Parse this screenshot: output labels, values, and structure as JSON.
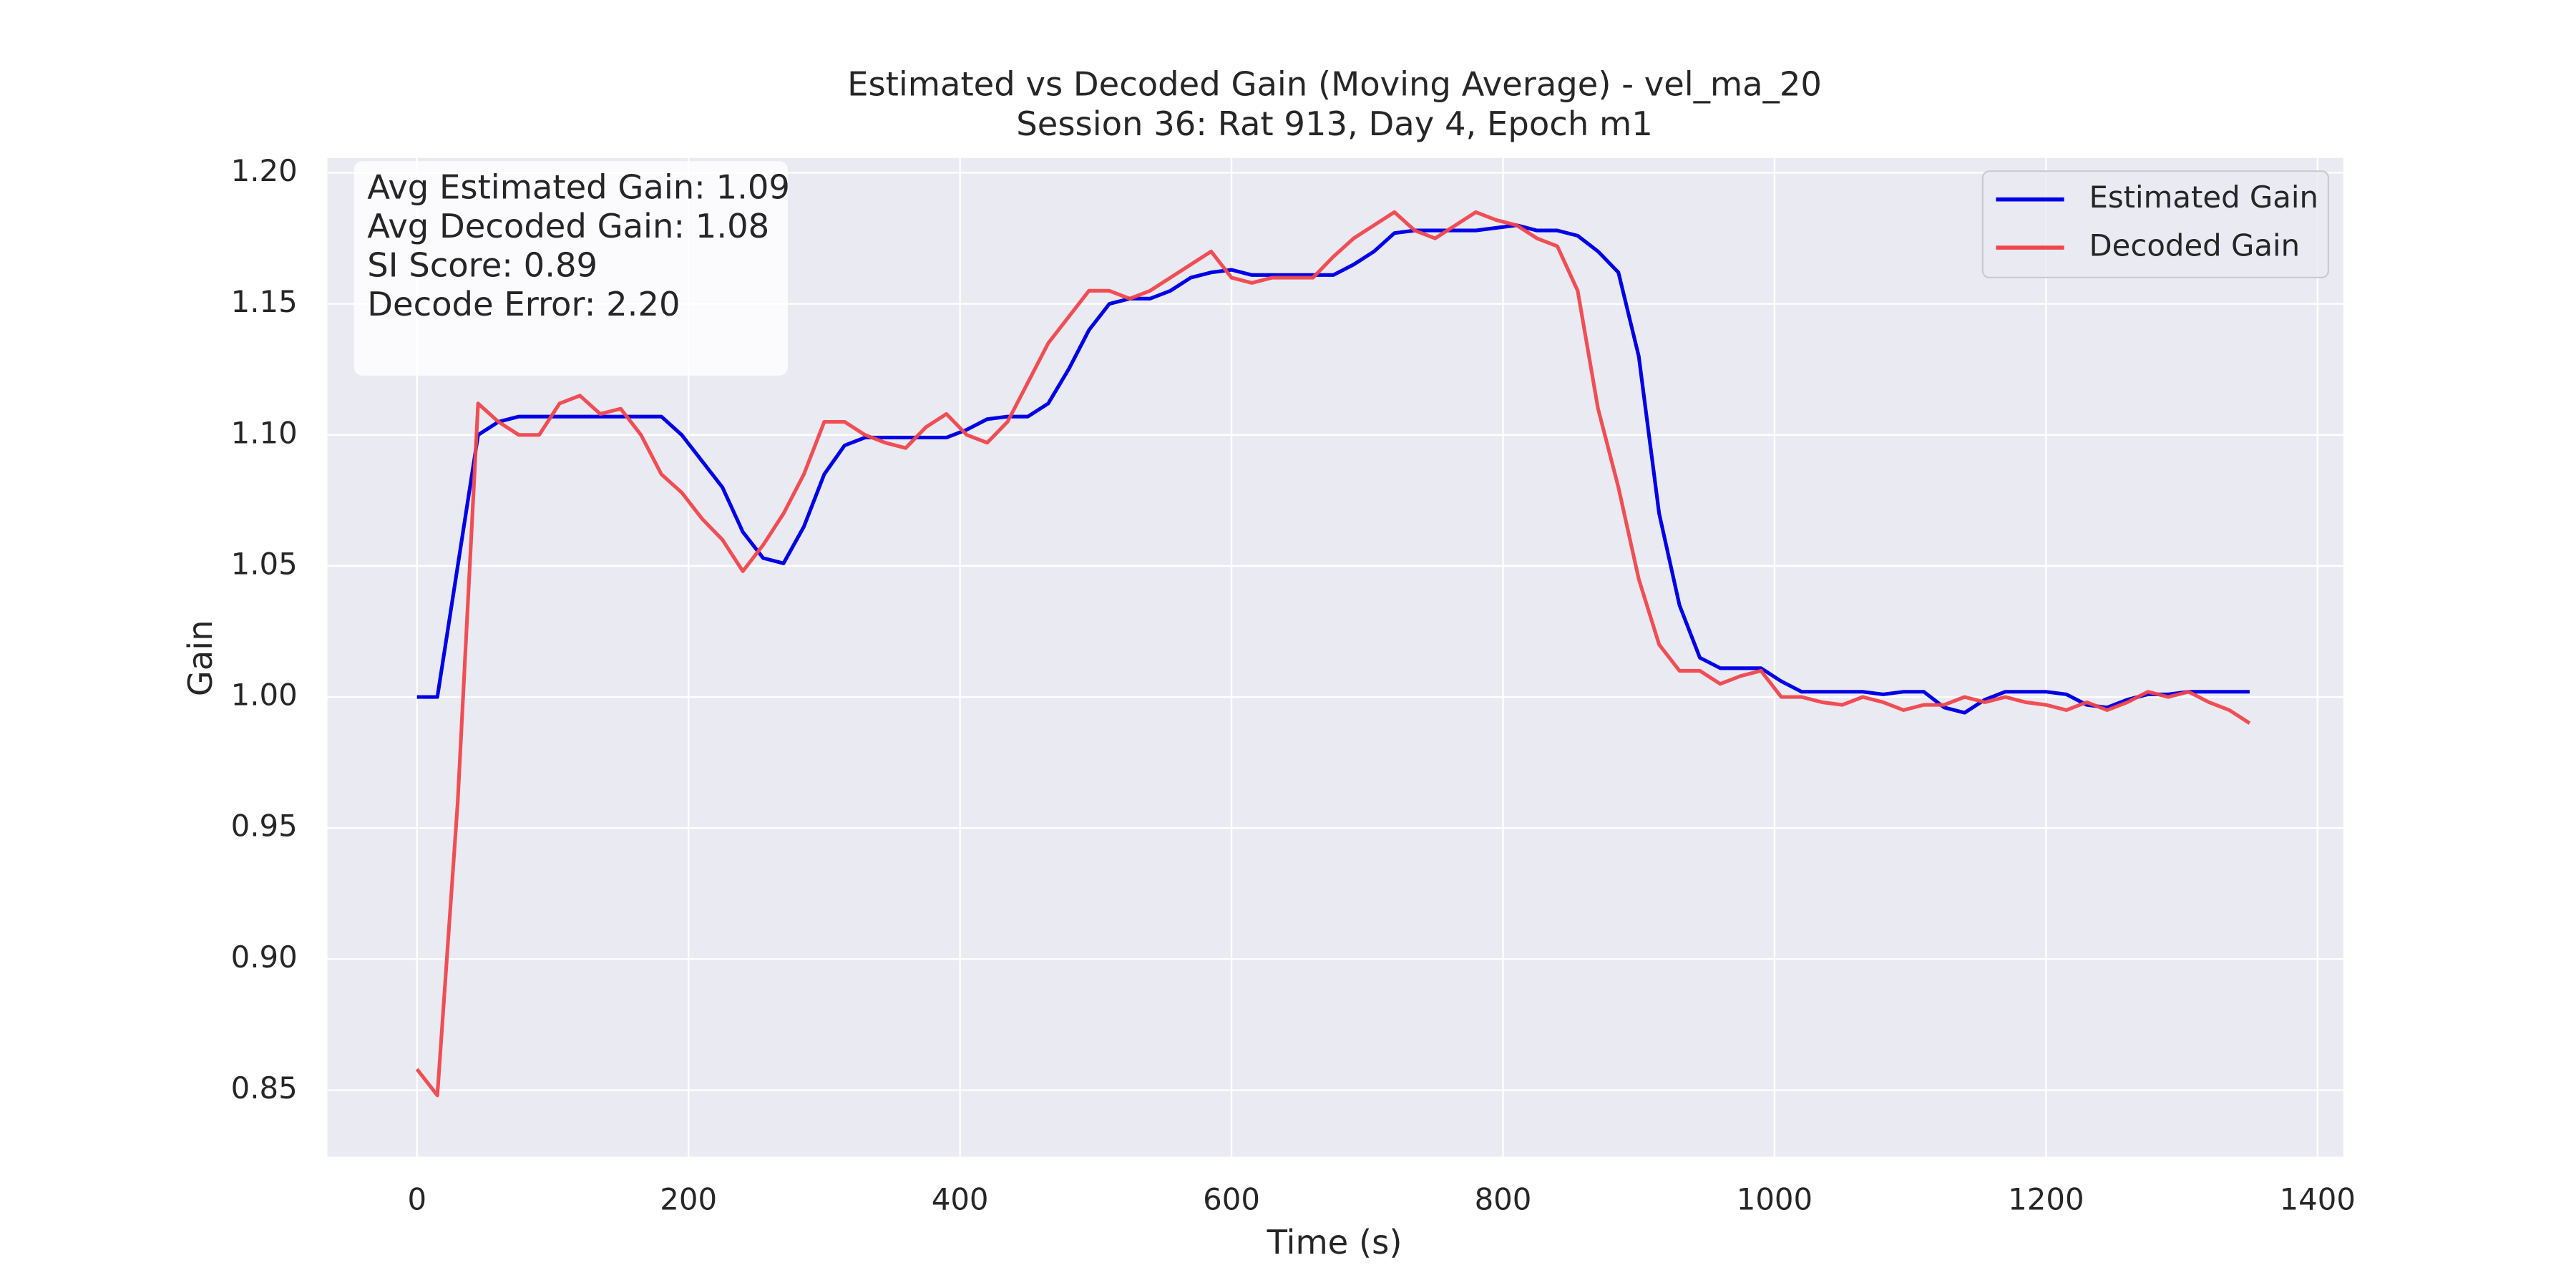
{
  "chart_data": {
    "type": "line",
    "title": "Estimated vs Decoded Gain (Moving Average) - vel_ma_20",
    "subtitle": "Session 36: Rat 913, Day 4, Epoch m1",
    "x_label": "Time (s)",
    "y_label": "Gain",
    "xlim": [
      -66,
      1419
    ],
    "ylim": [
      0.8246,
      1.2057
    ],
    "xticks": [
      0,
      200,
      400,
      600,
      800,
      1000,
      1200,
      1400
    ],
    "yticks": [
      0.85,
      {
        "value": 0.9,
        "label": "0.90"
      },
      0.95,
      {
        "value": 1.0,
        "label": "1.00"
      },
      1.05,
      {
        "value": 1.1,
        "label": "1.10"
      },
      1.15,
      {
        "value": 1.2,
        "label": "1.20"
      }
    ],
    "grid": true,
    "legend": "upper right",
    "annotations": [
      "Avg Estimated Gain: 1.09",
      "Avg Decoded Gain: 1.08",
      "SI Score: 0.89",
      "Decode Error: 2.20"
    ],
    "x": [
      0,
      15,
      30,
      45,
      60,
      75,
      90,
      105,
      120,
      135,
      150,
      165,
      180,
      195,
      210,
      225,
      240,
      255,
      270,
      285,
      300,
      315,
      330,
      345,
      360,
      375,
      390,
      405,
      420,
      435,
      450,
      465,
      480,
      495,
      510,
      525,
      540,
      555,
      570,
      585,
      600,
      615,
      630,
      645,
      660,
      675,
      690,
      705,
      720,
      735,
      750,
      765,
      780,
      795,
      810,
      825,
      840,
      855,
      870,
      885,
      900,
      915,
      930,
      945,
      960,
      975,
      990,
      1005,
      1020,
      1035,
      1050,
      1065,
      1080,
      1095,
      1110,
      1125,
      1140,
      1155,
      1170,
      1185,
      1200,
      1215,
      1230,
      1245,
      1260,
      1275,
      1290,
      1305,
      1320,
      1335,
      1350
    ],
    "series": [
      {
        "name": "Estimated Gain",
        "color": "#0000e6",
        "values": [
          1.0,
          1.0,
          1.05,
          1.1,
          1.105,
          1.107,
          1.107,
          1.107,
          1.107,
          1.107,
          1.107,
          1.107,
          1.107,
          1.1,
          1.09,
          1.08,
          1.063,
          1.053,
          1.051,
          1.065,
          1.085,
          1.096,
          1.099,
          1.099,
          1.099,
          1.099,
          1.099,
          1.102,
          1.106,
          1.107,
          1.107,
          1.112,
          1.125,
          1.14,
          1.15,
          1.152,
          1.152,
          1.155,
          1.16,
          1.162,
          1.163,
          1.161,
          1.161,
          1.161,
          1.161,
          1.161,
          1.165,
          1.17,
          1.177,
          1.178,
          1.178,
          1.178,
          1.178,
          1.179,
          1.18,
          1.178,
          1.178,
          1.176,
          1.17,
          1.162,
          1.13,
          1.07,
          1.035,
          1.015,
          1.011,
          1.011,
          1.011,
          1.006,
          1.002,
          1.002,
          1.002,
          1.002,
          1.001,
          1.002,
          1.002,
          0.996,
          0.994,
          0.999,
          1.002,
          1.002,
          1.002,
          1.001,
          0.997,
          0.996,
          0.999,
          1.001,
          1.001,
          1.002,
          1.002,
          1.002,
          1.002
        ]
      },
      {
        "name": "Decoded Gain",
        "color": "#f0464b",
        "values": [
          0.858,
          0.848,
          0.96,
          1.112,
          1.105,
          1.1,
          1.1,
          1.112,
          1.115,
          1.108,
          1.11,
          1.1,
          1.085,
          1.078,
          1.068,
          1.06,
          1.048,
          1.058,
          1.07,
          1.085,
          1.105,
          1.105,
          1.1,
          1.097,
          1.095,
          1.103,
          1.108,
          1.1,
          1.097,
          1.105,
          1.12,
          1.135,
          1.145,
          1.155,
          1.155,
          1.152,
          1.155,
          1.16,
          1.165,
          1.17,
          1.16,
          1.158,
          1.16,
          1.16,
          1.16,
          1.168,
          1.175,
          1.18,
          1.185,
          1.178,
          1.175,
          1.18,
          1.185,
          1.182,
          1.18,
          1.175,
          1.172,
          1.155,
          1.11,
          1.08,
          1.045,
          1.02,
          1.01,
          1.01,
          1.005,
          1.008,
          1.01,
          1.0,
          1.0,
          0.998,
          0.997,
          1.0,
          0.998,
          0.995,
          0.997,
          0.997,
          1.0,
          0.998,
          1.0,
          0.998,
          0.997,
          0.995,
          0.998,
          0.995,
          0.998,
          1.002,
          1.0,
          1.002,
          0.998,
          0.995,
          0.99
        ]
      }
    ]
  }
}
